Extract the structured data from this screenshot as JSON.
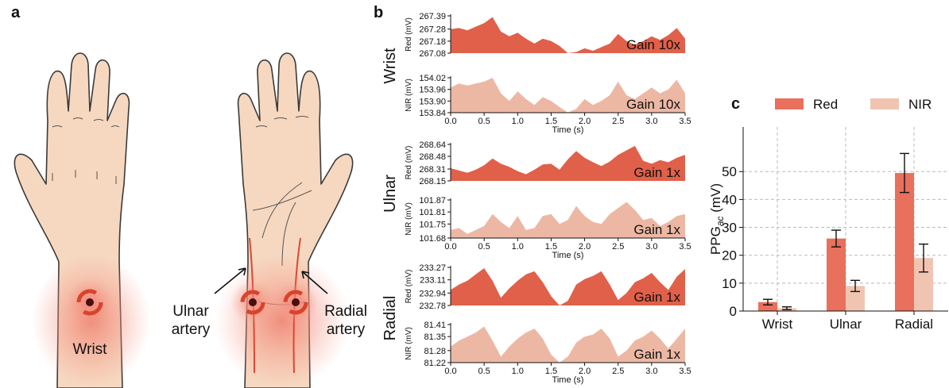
{
  "illustration": {
    "panel_label": "a",
    "wrist_label": "Wrist",
    "ulnar_label": [
      "Ulnar",
      "artery"
    ],
    "radial_label": [
      "Radial",
      "artery"
    ]
  },
  "chart_data": [
    {
      "type": "area",
      "panel_label": "b",
      "group_label": "Wrist",
      "ylabel": "Red (mV)",
      "annotation": "Gain 10x",
      "color": "#e0604a",
      "x": [
        0,
        0.125,
        0.25,
        0.375,
        0.5,
        0.625,
        0.75,
        0.875,
        1,
        1.125,
        1.25,
        1.375,
        1.5,
        1.625,
        1.75,
        1.875,
        2,
        2.125,
        2.25,
        2.375,
        2.5,
        2.625,
        2.75,
        2.875,
        3,
        3.125,
        3.25,
        3.375,
        3.5
      ],
      "values": [
        267.28,
        267.29,
        267.27,
        267.3,
        267.33,
        267.38,
        267.26,
        267.22,
        267.25,
        267.2,
        267.16,
        267.2,
        267.18,
        267.14,
        267.08,
        267.09,
        267.12,
        267.1,
        267.13,
        267.16,
        267.24,
        267.18,
        267.15,
        267.18,
        267.22,
        267.19,
        267.23,
        267.29,
        267.2
      ],
      "xlim": [
        0,
        3.5
      ],
      "ylim": [
        267.08,
        267.39
      ],
      "yticks": [
        267.08,
        267.18,
        267.28,
        267.39
      ]
    },
    {
      "type": "area",
      "ylabel": "NIR (mV)",
      "annotation": "Gain 10x",
      "color": "#ecb8a4",
      "xlabel": "Time (s)",
      "x": [
        0,
        0.125,
        0.25,
        0.375,
        0.5,
        0.625,
        0.75,
        0.875,
        1,
        1.125,
        1.25,
        1.375,
        1.5,
        1.625,
        1.75,
        1.875,
        2,
        2.125,
        2.25,
        2.375,
        2.5,
        2.625,
        2.75,
        2.875,
        3,
        3.125,
        3.25,
        3.375,
        3.5
      ],
      "values": [
        153.97,
        153.99,
        153.98,
        153.99,
        154.0,
        154.02,
        153.94,
        153.9,
        153.95,
        153.91,
        153.88,
        153.92,
        153.9,
        153.87,
        153.84,
        153.86,
        153.91,
        153.88,
        153.9,
        153.93,
        154.0,
        153.93,
        153.91,
        153.94,
        153.97,
        153.94,
        153.96,
        154.01,
        153.94
      ],
      "xlim": [
        0,
        3.5
      ],
      "ylim": [
        153.84,
        154.02
      ],
      "yticks": [
        153.84,
        {
          "value": 153.9,
          "label": "153.90"
        },
        153.96,
        154.02
      ],
      "xticks": [
        {
          "value": 0,
          "label": "0.0"
        },
        0.5,
        {
          "value": 1,
          "label": "1.0"
        },
        1.5,
        {
          "value": 2,
          "label": "2.0"
        },
        2.5,
        {
          "value": 3,
          "label": "3.0"
        },
        3.5
      ]
    },
    {
      "type": "area",
      "group_label": "Ulnar",
      "ylabel": "Red (mV)",
      "annotation": "Gain 1x",
      "color": "#e0604a",
      "x": [
        0,
        0.125,
        0.25,
        0.375,
        0.5,
        0.625,
        0.75,
        0.875,
        1,
        1.125,
        1.25,
        1.375,
        1.5,
        1.625,
        1.75,
        1.875,
        2,
        2.125,
        2.25,
        2.375,
        2.5,
        2.625,
        2.75,
        2.875,
        3,
        3.125,
        3.25,
        3.375,
        3.5
      ],
      "values": [
        268.32,
        268.29,
        268.26,
        268.3,
        268.36,
        268.45,
        268.38,
        268.34,
        268.28,
        268.24,
        268.3,
        268.37,
        268.38,
        268.3,
        268.44,
        268.55,
        268.46,
        268.4,
        268.35,
        268.41,
        268.5,
        268.56,
        268.62,
        268.42,
        268.38,
        268.43,
        268.4,
        268.46,
        268.5
      ],
      "xlim": [
        0,
        3.5
      ],
      "ylim": [
        268.15,
        268.64
      ],
      "yticks": [
        268.15,
        268.31,
        268.48,
        268.64
      ]
    },
    {
      "type": "area",
      "ylabel": "NIR (mV)",
      "annotation": "Gain 1x",
      "color": "#ecb8a4",
      "xlabel": "Time (s)",
      "x": [
        0,
        0.125,
        0.25,
        0.375,
        0.5,
        0.625,
        0.75,
        0.875,
        1,
        1.125,
        1.25,
        1.375,
        1.5,
        1.625,
        1.75,
        1.875,
        2,
        2.125,
        2.25,
        2.375,
        2.5,
        2.625,
        2.75,
        2.875,
        3,
        3.125,
        3.25,
        3.375,
        3.5
      ],
      "values": [
        101.72,
        101.73,
        101.7,
        101.72,
        101.74,
        101.8,
        101.76,
        101.73,
        101.79,
        101.72,
        101.73,
        101.79,
        101.8,
        101.75,
        101.77,
        101.84,
        101.79,
        101.76,
        101.75,
        101.8,
        101.83,
        101.86,
        101.82,
        101.77,
        101.78,
        101.74,
        101.76,
        101.79,
        101.8
      ],
      "xlim": [
        0,
        3.5
      ],
      "ylim": [
        101.68,
        101.87
      ],
      "yticks": [
        101.68,
        101.75,
        101.81,
        101.87
      ],
      "xticks": [
        {
          "value": 0,
          "label": "0.0"
        },
        0.5,
        {
          "value": 1,
          "label": "1.0"
        },
        1.5,
        {
          "value": 2,
          "label": "2.0"
        },
        2.5,
        {
          "value": 3,
          "label": "3.0"
        },
        3.5
      ]
    },
    {
      "type": "area",
      "group_label": "Radial",
      "ylabel": "Red (mV)",
      "annotation": "Gain 1x",
      "color": "#e0604a",
      "x": [
        0,
        0.125,
        0.25,
        0.375,
        0.5,
        0.625,
        0.75,
        0.875,
        1,
        1.125,
        1.25,
        1.375,
        1.5,
        1.625,
        1.75,
        1.875,
        2,
        2.125,
        2.25,
        2.375,
        2.5,
        2.625,
        2.75,
        2.875,
        3,
        3.125,
        3.25,
        3.375,
        3.5
      ],
      "values": [
        232.98,
        233.05,
        233.1,
        233.18,
        233.26,
        233.1,
        232.88,
        233.0,
        233.1,
        233.18,
        233.22,
        233.08,
        232.9,
        232.78,
        232.84,
        233.05,
        233.12,
        233.16,
        233.22,
        233.05,
        232.85,
        232.94,
        233.08,
        233.13,
        233.2,
        233.08,
        232.98,
        233.15,
        233.25
      ],
      "xlim": [
        0,
        3.5
      ],
      "ylim": [
        232.78,
        233.27
      ],
      "yticks": [
        232.78,
        232.94,
        233.11,
        233.27
      ]
    },
    {
      "type": "area",
      "ylabel": "NIR (mV)",
      "annotation": "Gain 1x",
      "color": "#ecb8a4",
      "xlabel": "Time (s)",
      "x": [
        0,
        0.125,
        0.25,
        0.375,
        0.5,
        0.625,
        0.75,
        0.875,
        1,
        1.125,
        1.25,
        1.375,
        1.5,
        1.625,
        1.75,
        1.875,
        2,
        2.125,
        2.25,
        2.375,
        2.5,
        2.625,
        2.75,
        2.875,
        3,
        3.125,
        3.25,
        3.375,
        3.5
      ],
      "values": [
        81.3,
        81.33,
        81.35,
        81.37,
        81.4,
        81.33,
        81.25,
        81.3,
        81.34,
        81.37,
        81.39,
        81.34,
        81.26,
        81.22,
        81.25,
        81.32,
        81.35,
        81.36,
        81.39,
        81.34,
        81.25,
        81.28,
        81.33,
        81.35,
        81.38,
        81.34,
        81.29,
        81.34,
        81.39
      ],
      "xlim": [
        0,
        3.5
      ],
      "ylim": [
        81.22,
        81.41
      ],
      "yticks": [
        81.22,
        81.28,
        81.35,
        81.41
      ],
      "xticks": [
        {
          "value": 0,
          "label": "0.0"
        },
        0.5,
        {
          "value": 1,
          "label": "1.0"
        },
        1.5,
        {
          "value": 2,
          "label": "2.0"
        },
        2.5,
        {
          "value": 3,
          "label": "3.0"
        },
        3.5
      ]
    },
    {
      "type": "bar",
      "panel_label": "c",
      "ylabel": {
        "text": "PPG",
        "subscript": "ac",
        "suffix": " (mV)"
      },
      "categories": [
        "Wrist",
        "Ulnar",
        "Radial"
      ],
      "series": [
        {
          "name": "Red",
          "color": "#e8705c",
          "values": [
            3.2,
            26,
            49.5
          ],
          "errors": [
            1,
            3,
            7
          ]
        },
        {
          "name": "NIR",
          "color": "#f1c4b2",
          "values": [
            1,
            9,
            19
          ],
          "errors": [
            0.5,
            2,
            5
          ]
        }
      ],
      "ylim": [
        0,
        66
      ],
      "yticks": [
        0,
        10,
        20,
        30,
        40,
        50
      ],
      "grid": true,
      "legend": "top"
    }
  ]
}
